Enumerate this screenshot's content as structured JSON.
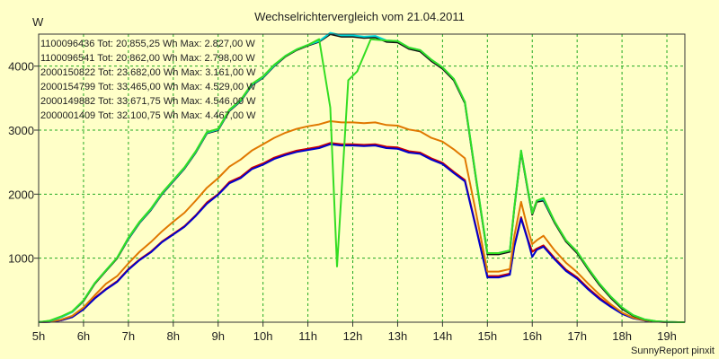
{
  "chart_data": {
    "type": "line",
    "title": "Wechselrichtervergleich vom 21.04.2011",
    "ylabel": "W",
    "xlabel": "",
    "footer": "SunnyReport pinxit",
    "grid": true,
    "legend_position": "top-left",
    "xlim": [
      5,
      19.4
    ],
    "ylim": [
      0,
      4500
    ],
    "x_ticks": [
      5,
      6,
      7,
      8,
      9,
      10,
      11,
      12,
      13,
      14,
      15,
      16,
      17,
      18,
      19
    ],
    "x_tick_labels": [
      "5h",
      "6h",
      "7h",
      "8h",
      "9h",
      "10h",
      "11h",
      "12h",
      "13h",
      "14h",
      "15h",
      "16h",
      "17h",
      "18h",
      "19h"
    ],
    "y_ticks": [
      1000,
      2000,
      3000,
      4000
    ],
    "y_tick_labels": [
      "1000",
      "2000",
      "3000",
      "4000"
    ],
    "series": [
      {
        "name": "1100096436",
        "legend": "1100096436 Tot: 20.855,25 Wh Max: 2.827,00 W",
        "color": "#cc0000",
        "x": [
          5,
          5.25,
          5.5,
          5.75,
          6,
          6.25,
          6.5,
          6.75,
          7,
          7.25,
          7.5,
          7.75,
          8,
          8.25,
          8.5,
          8.75,
          9,
          9.25,
          9.5,
          9.75,
          10,
          10.25,
          10.5,
          10.75,
          11,
          11.25,
          11.5,
          11.75,
          12,
          12.25,
          12.5,
          12.75,
          13,
          13.25,
          13.5,
          13.75,
          14,
          14.25,
          14.5,
          14.75,
          15,
          15.25,
          15.5,
          15.6,
          15.75,
          15.9,
          16.0,
          16.1,
          16.25,
          16.5,
          16.75,
          17,
          17.25,
          17.5,
          17.75,
          18,
          18.25,
          18.5,
          18.75,
          19,
          19.25,
          19.4
        ],
        "y": [
          0,
          5,
          30,
          80,
          200,
          380,
          520,
          640,
          830,
          980,
          1100,
          1260,
          1380,
          1500,
          1670,
          1870,
          2000,
          2190,
          2270,
          2410,
          2480,
          2570,
          2630,
          2680,
          2710,
          2740,
          2800,
          2780,
          2780,
          2770,
          2780,
          2740,
          2730,
          2670,
          2650,
          2560,
          2490,
          2350,
          2220,
          1480,
          720,
          720,
          760,
          1200,
          1640,
          1300,
          1100,
          1150,
          1200,
          1000,
          820,
          700,
          530,
          380,
          250,
          140,
          70,
          30,
          10,
          2,
          0,
          0
        ]
      },
      {
        "name": "1100096541",
        "legend": "1100096541 Tot: 20.862,00 Wh Max: 2.798,00 W",
        "color": "#0000cc",
        "x": [
          5,
          5.25,
          5.5,
          5.75,
          6,
          6.25,
          6.5,
          6.75,
          7,
          7.25,
          7.5,
          7.75,
          8,
          8.25,
          8.5,
          8.75,
          9,
          9.25,
          9.5,
          9.75,
          10,
          10.25,
          10.5,
          10.75,
          11,
          11.25,
          11.5,
          11.75,
          12,
          12.25,
          12.5,
          12.75,
          13,
          13.25,
          13.5,
          13.75,
          14,
          14.25,
          14.5,
          14.75,
          15,
          15.25,
          15.5,
          15.6,
          15.75,
          15.9,
          16.0,
          16.1,
          16.25,
          16.5,
          16.75,
          17,
          17.25,
          17.5,
          17.75,
          18,
          18.25,
          18.5,
          18.75,
          19,
          19.25,
          19.4
        ],
        "y": [
          0,
          5,
          30,
          80,
          200,
          370,
          510,
          630,
          820,
          970,
          1090,
          1250,
          1370,
          1490,
          1660,
          1850,
          1990,
          2170,
          2250,
          2390,
          2460,
          2550,
          2610,
          2660,
          2690,
          2720,
          2780,
          2760,
          2760,
          2750,
          2760,
          2720,
          2710,
          2650,
          2630,
          2540,
          2470,
          2330,
          2200,
          1460,
          700,
          700,
          740,
          1180,
          1620,
          1280,
          1020,
          1130,
          1180,
          980,
          800,
          680,
          510,
          360,
          240,
          130,
          60,
          25,
          8,
          2,
          0,
          0
        ]
      },
      {
        "name": "2000150822",
        "legend": "2000150822 Tot: 23.682,00 Wh Max: 3.161,00 W",
        "color": "#e07800",
        "x": [
          5,
          5.25,
          5.5,
          5.75,
          6,
          6.25,
          6.5,
          6.75,
          7,
          7.25,
          7.5,
          7.75,
          8,
          8.25,
          8.5,
          8.75,
          9,
          9.25,
          9.5,
          9.75,
          10,
          10.25,
          10.5,
          10.75,
          11,
          11.25,
          11.5,
          11.75,
          12,
          12.25,
          12.5,
          12.75,
          13,
          13.25,
          13.5,
          13.75,
          14,
          14.25,
          14.5,
          14.75,
          15,
          15.25,
          15.5,
          15.6,
          15.75,
          15.9,
          16.0,
          16.1,
          16.25,
          16.5,
          16.75,
          17,
          17.25,
          17.5,
          17.75,
          18,
          18.25,
          18.5,
          18.75,
          19,
          19.25,
          19.4
        ],
        "y": [
          0,
          10,
          40,
          100,
          230,
          420,
          600,
          720,
          920,
          1100,
          1250,
          1420,
          1570,
          1710,
          1900,
          2100,
          2250,
          2430,
          2540,
          2680,
          2780,
          2880,
          2960,
          3020,
          3060,
          3090,
          3140,
          3120,
          3120,
          3110,
          3120,
          3080,
          3070,
          3010,
          2980,
          2880,
          2820,
          2700,
          2560,
          1700,
          790,
          790,
          830,
          1350,
          1880,
          1460,
          1220,
          1280,
          1350,
          1120,
          930,
          780,
          600,
          430,
          280,
          150,
          70,
          30,
          10,
          2,
          0,
          0
        ]
      },
      {
        "name": "2000154799",
        "legend": "2000154799 Tot: 33.465,00 Wh Max: 4.529,00 W",
        "color": "#111111",
        "x": [
          5,
          5.25,
          5.5,
          5.75,
          6,
          6.25,
          6.5,
          6.75,
          7,
          7.25,
          7.5,
          7.75,
          8,
          8.25,
          8.5,
          8.75,
          9,
          9.25,
          9.5,
          9.75,
          10,
          10.25,
          10.5,
          10.75,
          11,
          11.25,
          11.5,
          11.75,
          12,
          12.25,
          12.5,
          12.75,
          13,
          13.25,
          13.5,
          13.75,
          14,
          14.25,
          14.5,
          14.75,
          15,
          15.25,
          15.5,
          15.6,
          15.75,
          15.9,
          16.0,
          16.1,
          16.25,
          16.5,
          16.75,
          17,
          17.25,
          17.5,
          17.75,
          18,
          18.25,
          18.5,
          18.75,
          19,
          19.25,
          19.4
        ],
        "y": [
          0,
          20,
          80,
          160,
          330,
          600,
          800,
          1000,
          1300,
          1550,
          1750,
          2000,
          2200,
          2400,
          2650,
          2950,
          3000,
          3300,
          3450,
          3700,
          3820,
          4000,
          4150,
          4250,
          4320,
          4380,
          4500,
          4460,
          4460,
          4440,
          4450,
          4380,
          4370,
          4270,
          4230,
          4080,
          3960,
          3780,
          3420,
          2220,
          1060,
          1060,
          1100,
          1780,
          2660,
          2060,
          1680,
          1880,
          1900,
          1550,
          1260,
          1080,
          820,
          580,
          380,
          210,
          100,
          40,
          12,
          3,
          0,
          0
        ]
      },
      {
        "name": "2000149882",
        "legend": "2000149882 Tot: 33.671,75 Wh Max: 4.546,00 W",
        "color": "#00d8d8",
        "x": [
          5,
          5.25,
          5.5,
          5.75,
          6,
          6.25,
          6.5,
          6.75,
          7,
          7.25,
          7.5,
          7.75,
          8,
          8.25,
          8.5,
          8.75,
          9,
          9.25,
          9.5,
          9.75,
          10,
          10.25,
          10.5,
          10.75,
          11,
          11.25,
          11.5,
          11.75,
          12,
          12.25,
          12.5,
          12.75,
          13,
          13.25,
          13.5,
          13.75,
          14,
          14.25,
          14.5,
          14.75,
          15,
          15.25,
          15.5,
          15.6,
          15.75,
          15.9,
          16.0,
          16.1,
          16.25,
          16.5,
          16.75,
          17,
          17.25,
          17.5,
          17.75,
          18,
          18.25,
          18.5,
          18.75,
          19,
          19.25,
          19.4
        ],
        "y": [
          0,
          20,
          80,
          160,
          340,
          610,
          810,
          1010,
          1310,
          1560,
          1760,
          2010,
          2210,
          2410,
          2660,
          2960,
          3010,
          3310,
          3460,
          3710,
          3830,
          4010,
          4160,
          4260,
          4330,
          4390,
          4520,
          4480,
          4480,
          4460,
          4470,
          4400,
          4390,
          4290,
          4250,
          4100,
          3980,
          3800,
          3440,
          2240,
          1080,
          1080,
          1120,
          1800,
          2680,
          2080,
          1700,
          1900,
          1920,
          1570,
          1280,
          1100,
          840,
          600,
          400,
          230,
          110,
          45,
          15,
          4,
          0,
          0
        ]
      },
      {
        "name": "2000001409",
        "legend": "2000001409 Tot: 32.100,75 Wh Max: 4.467,00 W",
        "color": "#33dd22",
        "x": [
          5,
          5.25,
          5.5,
          5.75,
          6,
          6.25,
          6.5,
          6.75,
          7,
          7.25,
          7.5,
          7.75,
          8,
          8.25,
          8.5,
          8.75,
          9,
          9.25,
          9.5,
          9.75,
          10,
          10.25,
          10.5,
          10.75,
          11,
          11.25,
          11.5,
          11.65,
          11.9,
          12.1,
          12.4,
          12.75,
          13,
          13.25,
          13.5,
          13.75,
          14,
          14.25,
          14.5,
          14.75,
          15,
          15.25,
          15.5,
          15.6,
          15.75,
          15.9,
          16.0,
          16.1,
          16.25,
          16.5,
          16.75,
          17,
          17.25,
          17.5,
          17.75,
          18,
          18.25,
          18.5,
          18.75,
          19,
          19.25,
          19.4
        ],
        "y": [
          0,
          25,
          90,
          170,
          340,
          610,
          810,
          1010,
          1320,
          1570,
          1770,
          2020,
          2220,
          2420,
          2670,
          2970,
          3020,
          3320,
          3470,
          3720,
          3840,
          4020,
          4160,
          4260,
          4330,
          4420,
          3350,
          870,
          3780,
          3920,
          4420,
          4400,
          4390,
          4290,
          4250,
          4100,
          3980,
          3800,
          3440,
          2240,
          1080,
          1080,
          1120,
          1800,
          2680,
          2080,
          1700,
          1900,
          1940,
          1570,
          1280,
          1100,
          840,
          600,
          400,
          230,
          110,
          45,
          15,
          4,
          0,
          0
        ]
      }
    ]
  }
}
